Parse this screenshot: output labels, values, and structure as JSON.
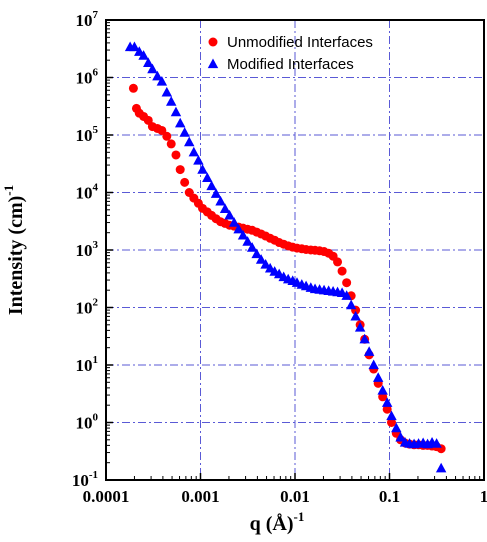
{
  "chart_data": {
    "type": "scatter",
    "xlabel": "q (Å)",
    "xlabel_exp": "-1",
    "ylabel": "Intensity (cm)",
    "ylabel_exp": "-1",
    "xscale": "log",
    "yscale": "log",
    "xlim": [
      0.0001,
      1
    ],
    "ylim": [
      0.1,
      10000000
    ],
    "grid": true,
    "grid_color": "#5a5ad6",
    "legend_position": "top-right",
    "x_ticks": [
      {
        "value": 0.0001,
        "label": "0.0001"
      },
      {
        "value": 0.001,
        "label": "0.001"
      },
      {
        "value": 0.01,
        "label": "0.01"
      },
      {
        "value": 0.1,
        "label": "0.1"
      },
      {
        "value": 1,
        "label": "1"
      }
    ],
    "y_ticks": [
      {
        "value": 0.1,
        "base": "10",
        "exp": "-1"
      },
      {
        "value": 1,
        "base": "10",
        "exp": "0"
      },
      {
        "value": 10,
        "base": "10",
        "exp": "1"
      },
      {
        "value": 100,
        "base": "10",
        "exp": "2"
      },
      {
        "value": 1000,
        "base": "10",
        "exp": "3"
      },
      {
        "value": 10000,
        "base": "10",
        "exp": "4"
      },
      {
        "value": 100000,
        "base": "10",
        "exp": "5"
      },
      {
        "value": 1000000,
        "base": "10",
        "exp": "6"
      },
      {
        "value": 10000000,
        "base": "10",
        "exp": "7"
      }
    ],
    "series": [
      {
        "name": "Unmodified Interfaces",
        "marker": "circle",
        "color": "#ff0000",
        "points": [
          [
            0.000195,
            650000
          ],
          [
            0.00021,
            290000
          ],
          [
            0.000225,
            240000
          ],
          [
            0.00025,
            210000
          ],
          [
            0.00028,
            180000
          ],
          [
            0.00031,
            140000
          ],
          [
            0.00035,
            130000
          ],
          [
            0.00039,
            120000
          ],
          [
            0.00044,
            95000
          ],
          [
            0.00049,
            70000
          ],
          [
            0.00055,
            45000
          ],
          [
            0.00061,
            25000
          ],
          [
            0.00068,
            15000
          ],
          [
            0.00076,
            10000
          ],
          [
            0.00085,
            8000
          ],
          [
            0.00095,
            6500
          ],
          [
            0.00105,
            5300
          ],
          [
            0.00118,
            4600
          ],
          [
            0.00131,
            4000
          ],
          [
            0.00146,
            3500
          ],
          [
            0.00163,
            3100
          ],
          [
            0.00182,
            2900
          ],
          [
            0.00203,
            2700
          ],
          [
            0.00227,
            2600
          ],
          [
            0.00253,
            2500
          ],
          [
            0.00282,
            2400
          ],
          [
            0.00315,
            2300
          ],
          [
            0.00352,
            2200
          ],
          [
            0.00393,
            2050
          ],
          [
            0.00438,
            1900
          ],
          [
            0.00489,
            1750
          ],
          [
            0.00546,
            1600
          ],
          [
            0.00609,
            1480
          ],
          [
            0.0068,
            1350
          ],
          [
            0.00759,
            1260
          ],
          [
            0.00847,
            1180
          ],
          [
            0.00945,
            1120
          ],
          [
            0.0105,
            1080
          ],
          [
            0.0118,
            1050
          ],
          [
            0.0131,
            1020
          ],
          [
            0.0147,
            1000
          ],
          [
            0.0163,
            990
          ],
          [
            0.0182,
            970
          ],
          [
            0.0203,
            940
          ],
          [
            0.0227,
            880
          ],
          [
            0.0253,
            780
          ],
          [
            0.0282,
            620
          ],
          [
            0.0315,
            430
          ],
          [
            0.0352,
            270
          ],
          [
            0.0393,
            160
          ],
          [
            0.0438,
            90
          ],
          [
            0.0489,
            50
          ],
          [
            0.0546,
            28
          ],
          [
            0.0609,
            15
          ],
          [
            0.068,
            8.5
          ],
          [
            0.0759,
            4.8
          ],
          [
            0.0847,
            2.8
          ],
          [
            0.0945,
            1.7
          ],
          [
            0.105,
            1.0
          ],
          [
            0.118,
            0.65
          ],
          [
            0.131,
            0.5
          ],
          [
            0.146,
            0.44
          ],
          [
            0.163,
            0.42
          ],
          [
            0.182,
            0.41
          ],
          [
            0.203,
            0.41
          ],
          [
            0.227,
            0.4
          ],
          [
            0.253,
            0.4
          ],
          [
            0.282,
            0.39
          ],
          [
            0.315,
            0.38
          ],
          [
            0.352,
            0.35
          ]
        ]
      },
      {
        "name": "Modified Interfaces",
        "marker": "triangle",
        "color": "#0000ff",
        "points": [
          [
            0.00018,
            3400000
          ],
          [
            0.0002,
            3400000
          ],
          [
            0.000225,
            2800000
          ],
          [
            0.00025,
            2400000
          ],
          [
            0.00028,
            1800000
          ],
          [
            0.00031,
            1400000
          ],
          [
            0.00035,
            1050000
          ],
          [
            0.00039,
            850000
          ],
          [
            0.00044,
            550000
          ],
          [
            0.00049,
            380000
          ],
          [
            0.00055,
            250000
          ],
          [
            0.00061,
            160000
          ],
          [
            0.00068,
            110000
          ],
          [
            0.00076,
            75000
          ],
          [
            0.00085,
            50000
          ],
          [
            0.00095,
            36000
          ],
          [
            0.00105,
            25000
          ],
          [
            0.00118,
            18000
          ],
          [
            0.00131,
            13000
          ],
          [
            0.00146,
            9500
          ],
          [
            0.00163,
            7000
          ],
          [
            0.00182,
            5200
          ],
          [
            0.00203,
            4000
          ],
          [
            0.00227,
            3000
          ],
          [
            0.00253,
            2300
          ],
          [
            0.00282,
            1800
          ],
          [
            0.00315,
            1400
          ],
          [
            0.00352,
            1100
          ],
          [
            0.00393,
            850
          ],
          [
            0.00438,
            680
          ],
          [
            0.00489,
            560
          ],
          [
            0.00546,
            480
          ],
          [
            0.00609,
            420
          ],
          [
            0.0068,
            380
          ],
          [
            0.00759,
            340
          ],
          [
            0.00847,
            310
          ],
          [
            0.00945,
            290
          ],
          [
            0.0105,
            270
          ],
          [
            0.0118,
            250
          ],
          [
            0.0131,
            235
          ],
          [
            0.0147,
            220
          ],
          [
            0.0163,
            210
          ],
          [
            0.0182,
            205
          ],
          [
            0.0203,
            200
          ],
          [
            0.0227,
            195
          ],
          [
            0.0253,
            190
          ],
          [
            0.0282,
            185
          ],
          [
            0.0315,
            180
          ],
          [
            0.0352,
            160
          ],
          [
            0.0393,
            110
          ],
          [
            0.0438,
            70
          ],
          [
            0.0489,
            45
          ],
          [
            0.0546,
            28
          ],
          [
            0.0609,
            17
          ],
          [
            0.068,
            10
          ],
          [
            0.0759,
            6
          ],
          [
            0.0847,
            3.6
          ],
          [
            0.0945,
            2.2
          ],
          [
            0.105,
            1.3
          ],
          [
            0.118,
            0.8
          ],
          [
            0.131,
            0.55
          ],
          [
            0.146,
            0.45
          ],
          [
            0.163,
            0.43
          ],
          [
            0.182,
            0.42
          ],
          [
            0.203,
            0.43
          ],
          [
            0.227,
            0.44
          ],
          [
            0.253,
            0.42
          ],
          [
            0.282,
            0.45
          ],
          [
            0.315,
            0.43
          ],
          [
            0.352,
            0.16
          ]
        ]
      }
    ]
  }
}
